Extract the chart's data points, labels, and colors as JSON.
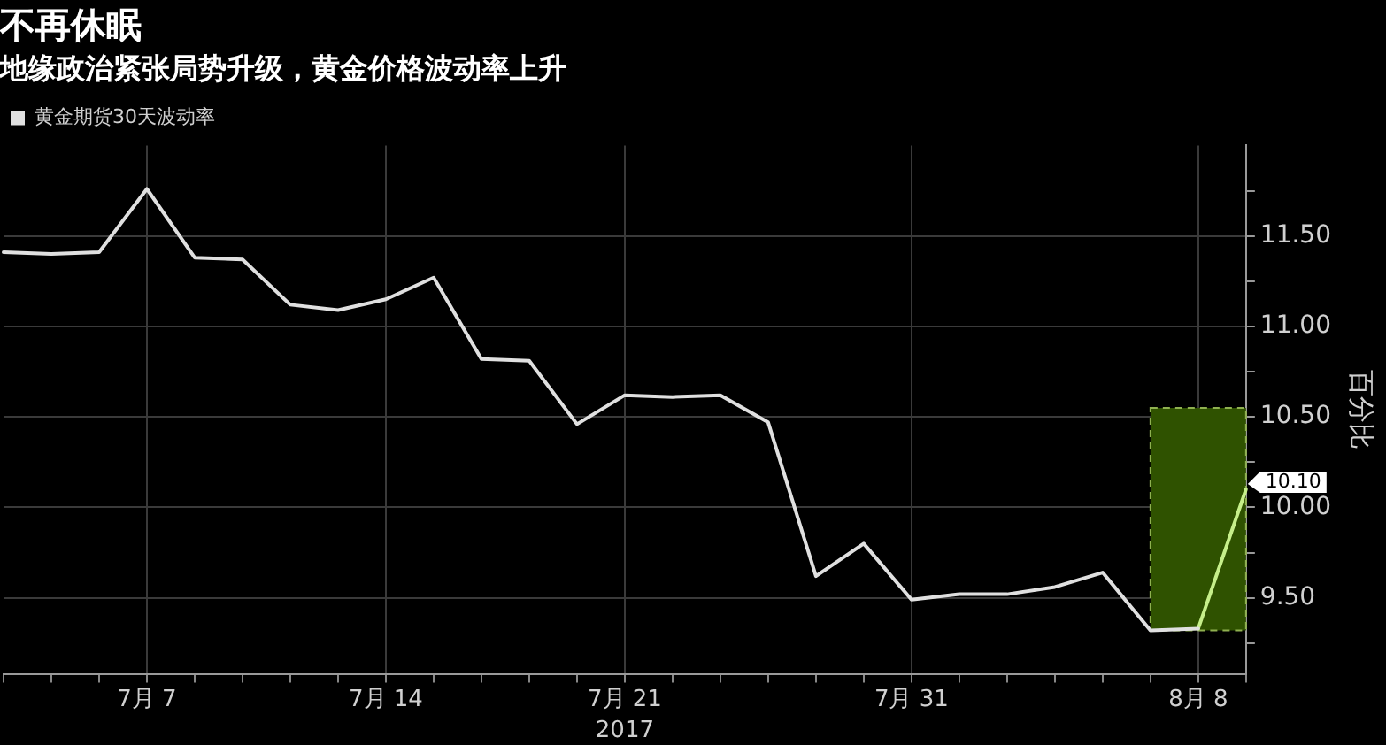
{
  "chart_data": {
    "type": "line",
    "title": "不再休眠",
    "subtitle": "地缘政治紧张局势升级，黄金价格波动率上升",
    "ylabel": "百分比",
    "xlabel": "2017",
    "categories": [
      null,
      null,
      null,
      "7月 7",
      null,
      null,
      null,
      null,
      "7月 14",
      null,
      null,
      null,
      null,
      "7月 21",
      null,
      null,
      null,
      null,
      null,
      "7月 31",
      null,
      null,
      null,
      null,
      null,
      "8月 8",
      null
    ],
    "series": [
      {
        "name": "黄金期货30天波动率",
        "color": "#e0e0e0",
        "values": [
          11.41,
          11.4,
          11.41,
          11.76,
          11.38,
          11.37,
          11.12,
          11.09,
          11.15,
          11.27,
          10.82,
          10.81,
          10.46,
          10.62,
          10.61,
          10.62,
          10.47,
          9.62,
          9.8,
          9.49,
          9.52,
          9.52,
          9.56,
          9.64,
          9.32,
          9.33,
          null
        ]
      },
      {
        "color": "#c6ef8a",
        "values": [
          null,
          null,
          null,
          null,
          null,
          null,
          null,
          null,
          null,
          null,
          null,
          null,
          null,
          null,
          null,
          null,
          null,
          null,
          null,
          null,
          null,
          null,
          null,
          null,
          null,
          9.33,
          10.1
        ],
        "value_labels": [
          null,
          null,
          null,
          null,
          null,
          null,
          null,
          null,
          null,
          null,
          null,
          null,
          null,
          null,
          null,
          null,
          null,
          null,
          null,
          null,
          null,
          null,
          null,
          null,
          null,
          null,
          "10.10"
        ]
      }
    ],
    "bands": [
      {
        "axis": "y",
        "from": 9.32,
        "to": 10.55,
        "color": "#2f5200"
      }
    ],
    "ylim": [
      9.08,
      12.0
    ],
    "yticks": [
      {
        "value": 9.25,
        "label": null
      },
      {
        "value": 9.5,
        "label": "9.50"
      },
      {
        "value": 9.75,
        "label": null
      },
      {
        "value": 10,
        "label": "10.00"
      },
      {
        "value": 10.25,
        "label": null
      },
      {
        "value": 10.5,
        "label": "10.50"
      },
      {
        "value": 10.75,
        "label": null
      },
      {
        "value": 11,
        "label": "11.00"
      },
      {
        "value": 11.25,
        "label": null
      },
      {
        "value": 11.5,
        "label": "11.50"
      },
      {
        "value": 11.75,
        "label": null
      }
    ],
    "grid": true,
    "legend": "top left",
    "marker": "none",
    "line_style": "solid"
  }
}
